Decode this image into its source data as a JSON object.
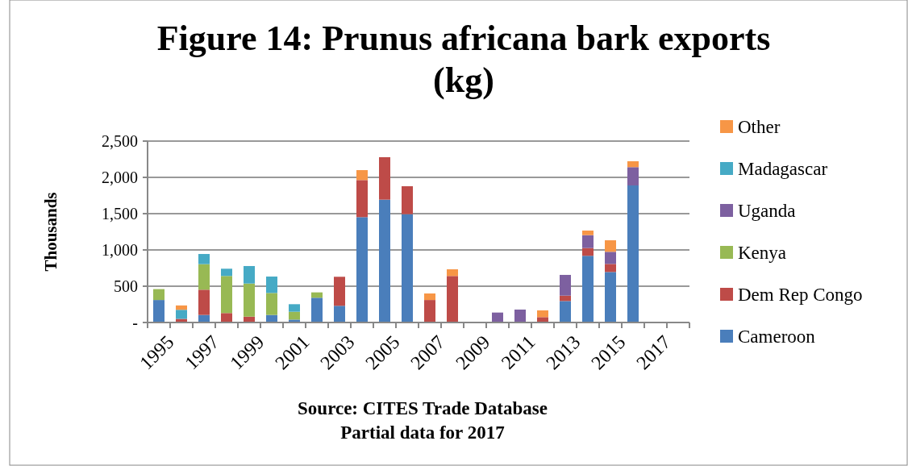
{
  "chart_data": {
    "type": "bar",
    "stacked": true,
    "title": "Figure 14: Prunus africana bark exports (kg)",
    "ylabel": "Thousands",
    "annotations": [
      "Source: CITES Trade Database",
      "Partial data for 2017"
    ],
    "categories": [
      "1995",
      null,
      "1997",
      null,
      "1999",
      null,
      "2001",
      null,
      "2003",
      null,
      "2005",
      null,
      "2007",
      null,
      "2009",
      null,
      "2011",
      null,
      "2013",
      null,
      "2015",
      null,
      "2017",
      null
    ],
    "series": [
      {
        "name": "Cameroon",
        "color": "#4a7ebb",
        "values": [
          310,
          0,
          104,
          0,
          0,
          104,
          40,
          341,
          230,
          1452,
          1693,
          1493,
          0,
          0,
          0,
          0,
          0,
          0,
          296,
          919,
          696,
          1889,
          0,
          0
        ]
      },
      {
        "name": "Dem Rep Congo",
        "color": "#be4b48",
        "values": [
          0,
          50,
          348,
          130,
          81,
          0,
          0,
          0,
          400,
          511,
          585,
          385,
          310,
          641,
          0,
          0,
          0,
          74,
          74,
          107,
          111,
          0,
          0,
          0
        ]
      },
      {
        "name": "Kenya",
        "color": "#98b954",
        "values": [
          150,
          0,
          352,
          511,
          456,
          303,
          108,
          74,
          0,
          0,
          0,
          0,
          0,
          0,
          0,
          0,
          0,
          0,
          0,
          0,
          0,
          0,
          0,
          0
        ]
      },
      {
        "name": "Uganda",
        "color": "#7d60a0",
        "values": [
          0,
          0,
          0,
          0,
          0,
          0,
          0,
          0,
          0,
          0,
          0,
          0,
          0,
          0,
          0,
          137,
          178,
          0,
          286,
          178,
          167,
          252,
          0,
          0
        ]
      },
      {
        "name": "Madagascar",
        "color": "#46aac5",
        "values": [
          0,
          125,
          140,
          100,
          241,
          226,
          104,
          0,
          0,
          0,
          0,
          0,
          0,
          0,
          0,
          0,
          0,
          0,
          0,
          0,
          0,
          0,
          0,
          0
        ]
      },
      {
        "name": "Other",
        "color": "#f79646",
        "values": [
          0,
          60,
          0,
          0,
          0,
          0,
          0,
          0,
          0,
          137,
          0,
          0,
          90,
          92,
          0,
          0,
          0,
          93,
          0,
          63,
          159,
          81,
          0,
          0
        ]
      }
    ],
    "ylim": [
      0,
      2500
    ],
    "yticks": [
      {
        "value": 0,
        "label": "-"
      },
      {
        "value": 500,
        "label": "500"
      },
      {
        "value": 1000,
        "label": "1,000"
      },
      {
        "value": 1500,
        "label": "1,500"
      },
      {
        "value": 2000,
        "label": "2,000"
      },
      {
        "value": 2500,
        "label": "2,500"
      }
    ],
    "grid": "y",
    "legend": "right"
  }
}
